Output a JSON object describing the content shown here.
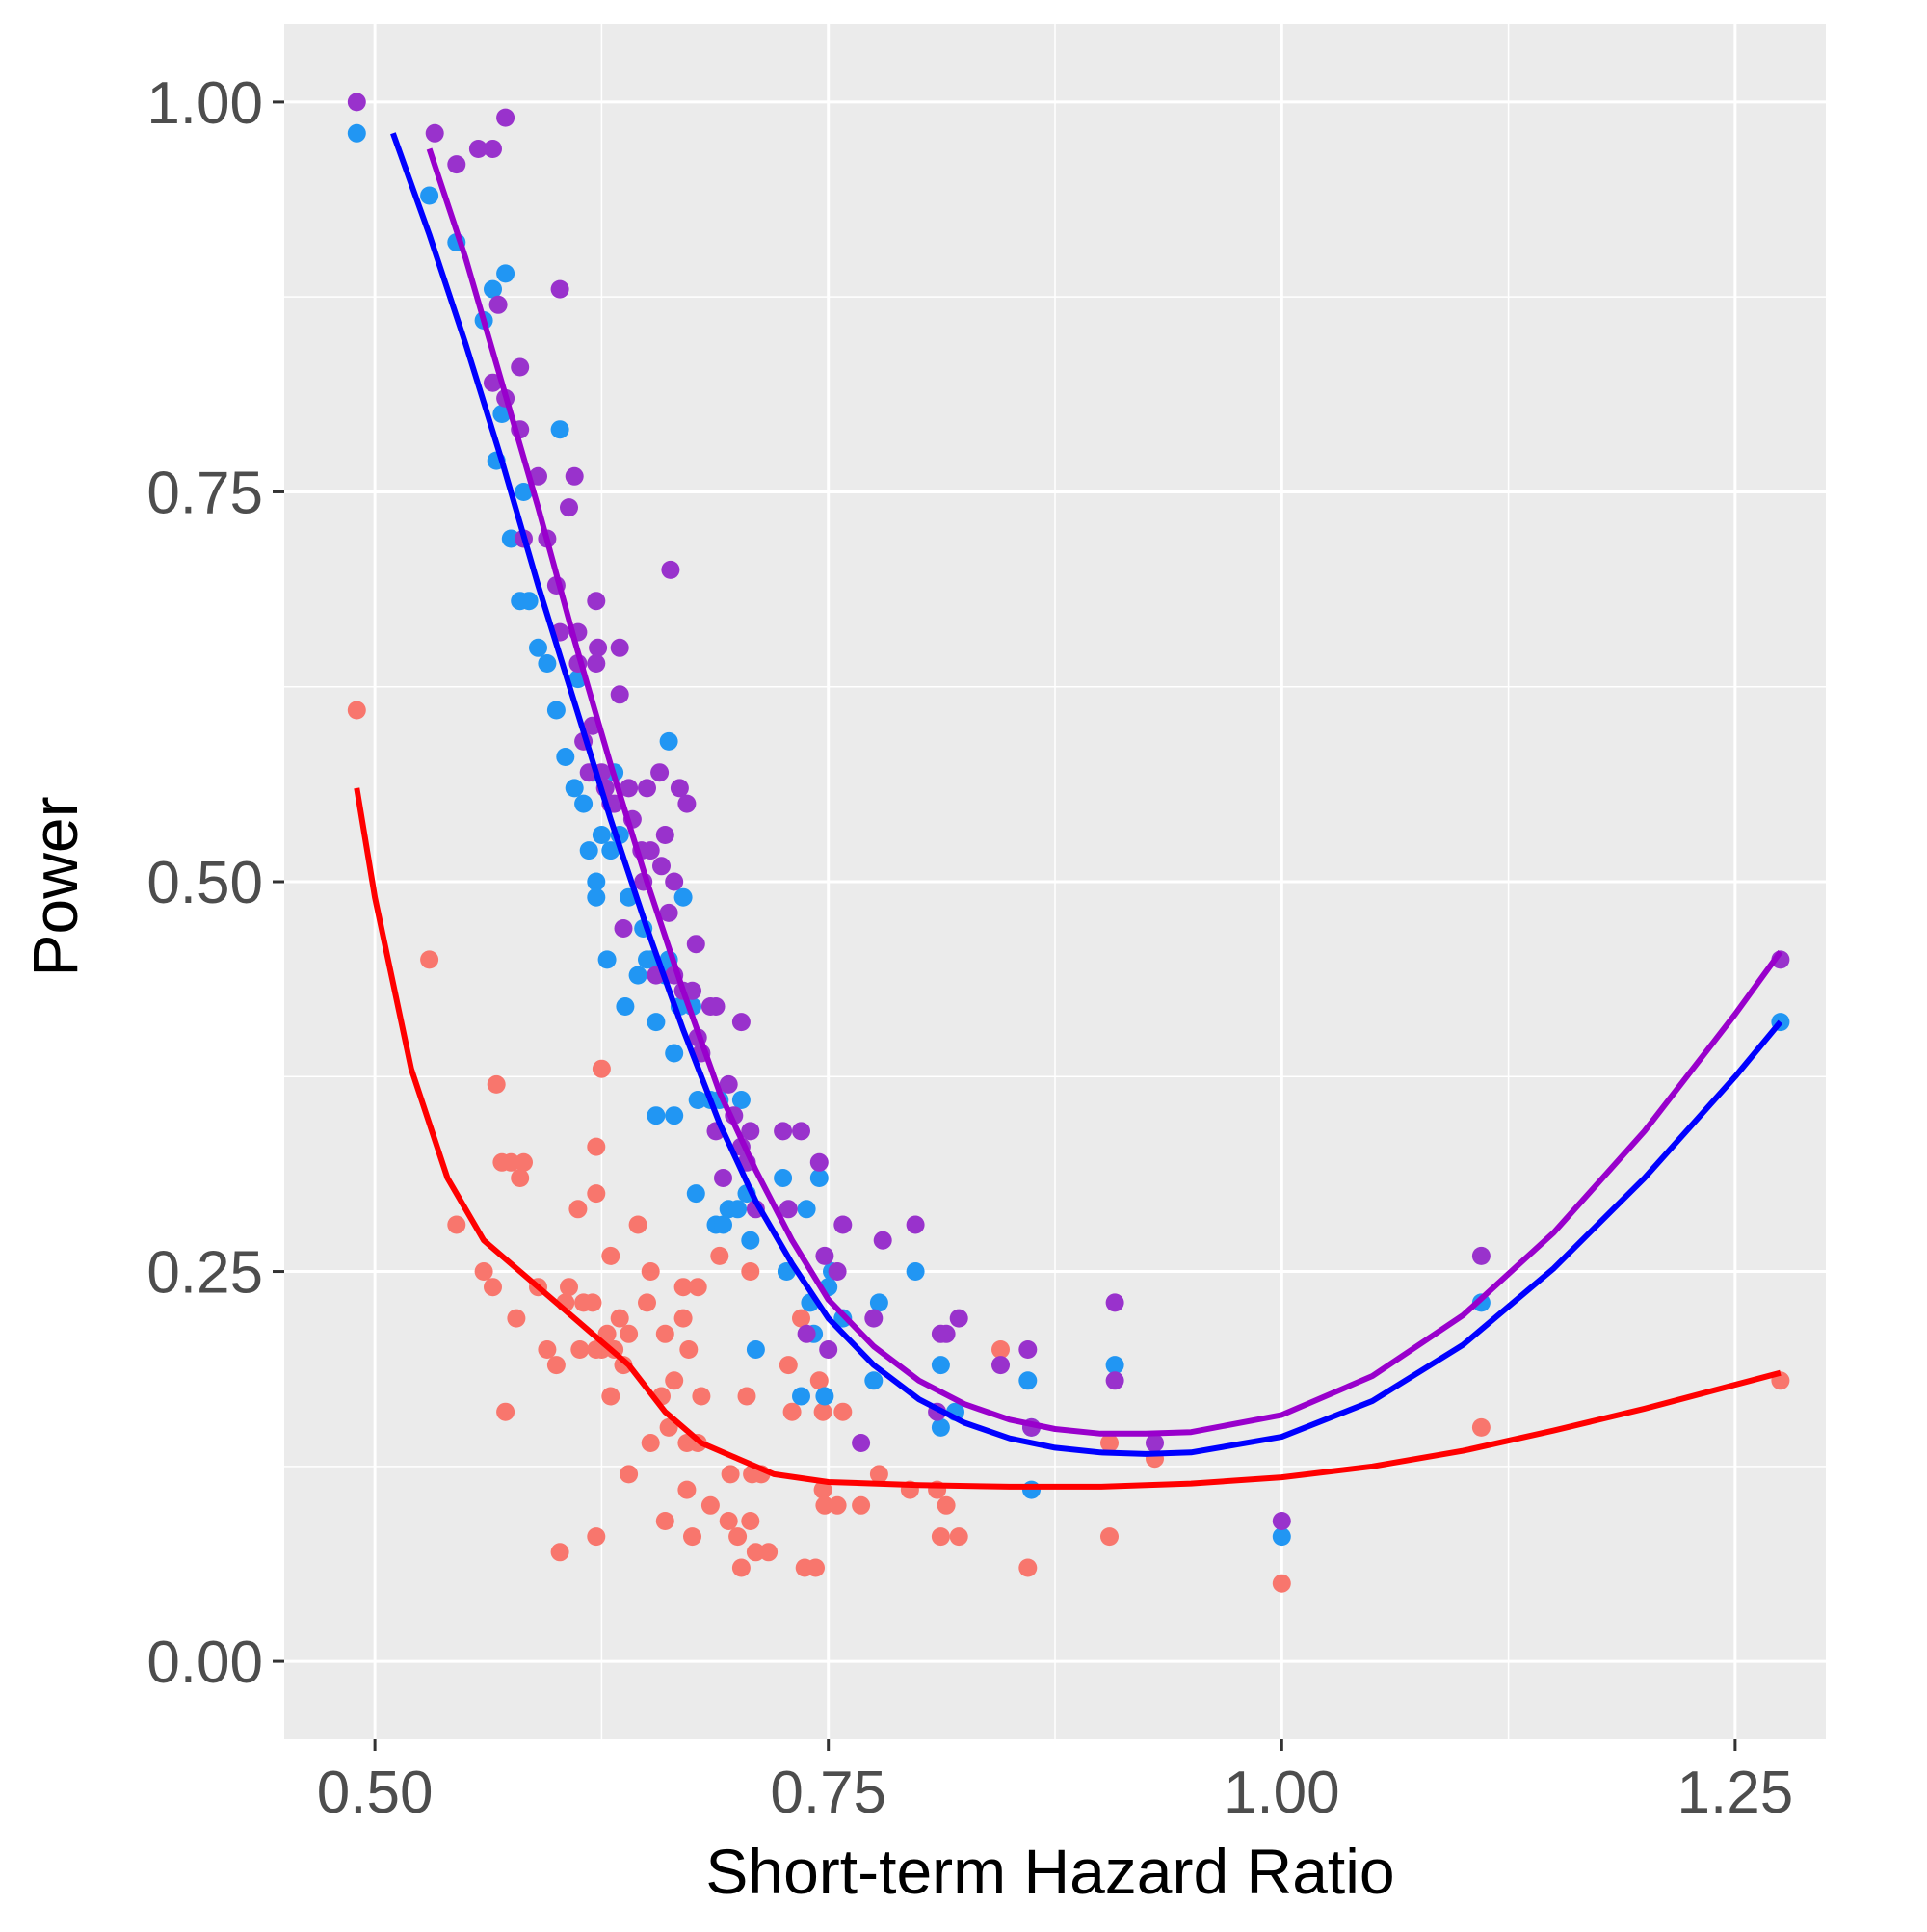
{
  "chart_data": {
    "type": "scatter",
    "title": "",
    "xlabel": "Short-term Hazard Ratio",
    "ylabel": "Power",
    "xlim": [
      0.45,
      1.3
    ],
    "ylim": [
      -0.05,
      1.05
    ],
    "x_ticks": [
      0.5,
      0.75,
      1.0,
      1.25
    ],
    "x_tick_labels": [
      "0.50",
      "0.75",
      "1.00",
      "1.25"
    ],
    "y_ticks": [
      0.0,
      0.25,
      0.5,
      0.75,
      1.0
    ],
    "y_tick_labels": [
      "0.00",
      "0.25",
      "0.50",
      "0.75",
      "1.00"
    ],
    "grid": true,
    "legend": "none",
    "background": "#ebebeb",
    "series": [
      {
        "color": "#f8766d",
        "points": [
          [
            0.49,
            0.61
          ],
          [
            0.53,
            0.45
          ],
          [
            0.545,
            0.28
          ],
          [
            0.56,
            0.25
          ],
          [
            0.565,
            0.24
          ],
          [
            0.567,
            0.37
          ],
          [
            0.57,
            0.32
          ],
          [
            0.572,
            0.16
          ],
          [
            0.575,
            0.32
          ],
          [
            0.578,
            0.22
          ],
          [
            0.58,
            0.31
          ],
          [
            0.582,
            0.32
          ],
          [
            0.59,
            0.24
          ],
          [
            0.595,
            0.2
          ],
          [
            0.6,
            0.19
          ],
          [
            0.602,
            0.07
          ],
          [
            0.605,
            0.23
          ],
          [
            0.607,
            0.24
          ],
          [
            0.612,
            0.29
          ],
          [
            0.613,
            0.2
          ],
          [
            0.615,
            0.23
          ],
          [
            0.62,
            0.23
          ],
          [
            0.622,
            0.08
          ],
          [
            0.622,
            0.2
          ],
          [
            0.622,
            0.3
          ],
          [
            0.622,
            0.33
          ],
          [
            0.625,
            0.2
          ],
          [
            0.625,
            0.38
          ],
          [
            0.628,
            0.21
          ],
          [
            0.63,
            0.26
          ],
          [
            0.63,
            0.17
          ],
          [
            0.632,
            0.2
          ],
          [
            0.635,
            0.22
          ],
          [
            0.637,
            0.19
          ],
          [
            0.64,
            0.12
          ],
          [
            0.64,
            0.21
          ],
          [
            0.645,
            0.28
          ],
          [
            0.65,
            0.23
          ],
          [
            0.652,
            0.14
          ],
          [
            0.652,
            0.25
          ],
          [
            0.658,
            0.17
          ],
          [
            0.66,
            0.09
          ],
          [
            0.66,
            0.21
          ],
          [
            0.662,
            0.15
          ],
          [
            0.665,
            0.18
          ],
          [
            0.67,
            0.24
          ],
          [
            0.67,
            0.22
          ],
          [
            0.672,
            0.11
          ],
          [
            0.672,
            0.14
          ],
          [
            0.673,
            0.2
          ],
          [
            0.675,
            0.08
          ],
          [
            0.678,
            0.24
          ],
          [
            0.678,
            0.14
          ],
          [
            0.68,
            0.17
          ],
          [
            0.685,
            0.1
          ],
          [
            0.69,
            0.26
          ],
          [
            0.695,
            0.09
          ],
          [
            0.696,
            0.12
          ],
          [
            0.7,
            0.08
          ],
          [
            0.702,
            0.06
          ],
          [
            0.705,
            0.17
          ],
          [
            0.707,
            0.09
          ],
          [
            0.707,
            0.25
          ],
          [
            0.708,
            0.12
          ],
          [
            0.71,
            0.07
          ],
          [
            0.713,
            0.12
          ],
          [
            0.717,
            0.07
          ],
          [
            0.728,
            0.19
          ],
          [
            0.73,
            0.16
          ],
          [
            0.735,
            0.22
          ],
          [
            0.737,
            0.06
          ],
          [
            0.743,
            0.06
          ],
          [
            0.745,
            0.18
          ],
          [
            0.747,
            0.11
          ],
          [
            0.747,
            0.16
          ],
          [
            0.748,
            0.1
          ],
          [
            0.755,
            0.1
          ],
          [
            0.758,
            0.16
          ],
          [
            0.768,
            0.1
          ],
          [
            0.778,
            0.12
          ],
          [
            0.795,
            0.11
          ],
          [
            0.81,
            0.11
          ],
          [
            0.812,
            0.08
          ],
          [
            0.815,
            0.1
          ],
          [
            0.822,
            0.08
          ],
          [
            0.845,
            0.2
          ],
          [
            0.86,
            0.06
          ],
          [
            0.905,
            0.14
          ],
          [
            0.905,
            0.08
          ],
          [
            0.93,
            0.13
          ],
          [
            1.0,
            0.05
          ],
          [
            1.11,
            0.15
          ],
          [
            1.275,
            0.18
          ]
        ]
      },
      {
        "color": "#2196f3",
        "points": [
          [
            0.49,
            0.98
          ],
          [
            0.53,
            0.94
          ],
          [
            0.545,
            0.91
          ],
          [
            0.56,
            0.86
          ],
          [
            0.565,
            0.88
          ],
          [
            0.567,
            0.77
          ],
          [
            0.57,
            0.8
          ],
          [
            0.572,
            0.89
          ],
          [
            0.575,
            0.72
          ],
          [
            0.58,
            0.68
          ],
          [
            0.582,
            0.75
          ],
          [
            0.585,
            0.68
          ],
          [
            0.59,
            0.65
          ],
          [
            0.595,
            0.64
          ],
          [
            0.6,
            0.61
          ],
          [
            0.602,
            0.79
          ],
          [
            0.605,
            0.58
          ],
          [
            0.61,
            0.56
          ],
          [
            0.612,
            0.63
          ],
          [
            0.615,
            0.55
          ],
          [
            0.618,
            0.52
          ],
          [
            0.62,
            0.57
          ],
          [
            0.622,
            0.5
          ],
          [
            0.622,
            0.49
          ],
          [
            0.625,
            0.53
          ],
          [
            0.628,
            0.45
          ],
          [
            0.63,
            0.52
          ],
          [
            0.632,
            0.57
          ],
          [
            0.635,
            0.53
          ],
          [
            0.638,
            0.42
          ],
          [
            0.64,
            0.49
          ],
          [
            0.645,
            0.44
          ],
          [
            0.648,
            0.47
          ],
          [
            0.65,
            0.45
          ],
          [
            0.652,
            0.45
          ],
          [
            0.655,
            0.41
          ],
          [
            0.655,
            0.35
          ],
          [
            0.66,
            0.44
          ],
          [
            0.662,
            0.59
          ],
          [
            0.662,
            0.45
          ],
          [
            0.665,
            0.35
          ],
          [
            0.665,
            0.39
          ],
          [
            0.668,
            0.42
          ],
          [
            0.67,
            0.49
          ],
          [
            0.675,
            0.42
          ],
          [
            0.677,
            0.3
          ],
          [
            0.678,
            0.36
          ],
          [
            0.685,
            0.36
          ],
          [
            0.688,
            0.28
          ],
          [
            0.69,
            0.36
          ],
          [
            0.692,
            0.28
          ],
          [
            0.695,
            0.29
          ],
          [
            0.7,
            0.29
          ],
          [
            0.702,
            0.36
          ],
          [
            0.705,
            0.3
          ],
          [
            0.707,
            0.27
          ],
          [
            0.71,
            0.2
          ],
          [
            0.725,
            0.31
          ],
          [
            0.727,
            0.25
          ],
          [
            0.735,
            0.17
          ],
          [
            0.738,
            0.29
          ],
          [
            0.74,
            0.23
          ],
          [
            0.742,
            0.21
          ],
          [
            0.745,
            0.31
          ],
          [
            0.748,
            0.17
          ],
          [
            0.75,
            0.24
          ],
          [
            0.752,
            0.25
          ],
          [
            0.758,
            0.22
          ],
          [
            0.775,
            0.18
          ],
          [
            0.778,
            0.23
          ],
          [
            0.798,
            0.25
          ],
          [
            0.812,
            0.19
          ],
          [
            0.812,
            0.15
          ],
          [
            0.82,
            0.16
          ],
          [
            0.86,
            0.18
          ],
          [
            0.862,
            0.15
          ],
          [
            0.862,
            0.11
          ],
          [
            0.908,
            0.19
          ],
          [
            1.0,
            0.08
          ],
          [
            1.11,
            0.23
          ],
          [
            1.275,
            0.41
          ]
        ]
      },
      {
        "color": "#9932cc",
        "points": [
          [
            0.49,
            1.0
          ],
          [
            0.533,
            0.98
          ],
          [
            0.545,
            0.96
          ],
          [
            0.557,
            0.97
          ],
          [
            0.565,
            0.97
          ],
          [
            0.565,
            0.82
          ],
          [
            0.568,
            0.87
          ],
          [
            0.572,
            0.99
          ],
          [
            0.572,
            0.81
          ],
          [
            0.58,
            0.83
          ],
          [
            0.58,
            0.79
          ],
          [
            0.582,
            0.72
          ],
          [
            0.59,
            0.76
          ],
          [
            0.595,
            0.72
          ],
          [
            0.6,
            0.69
          ],
          [
            0.602,
            0.88
          ],
          [
            0.602,
            0.66
          ],
          [
            0.607,
            0.74
          ],
          [
            0.61,
            0.76
          ],
          [
            0.612,
            0.66
          ],
          [
            0.612,
            0.64
          ],
          [
            0.615,
            0.59
          ],
          [
            0.618,
            0.57
          ],
          [
            0.62,
            0.6
          ],
          [
            0.622,
            0.68
          ],
          [
            0.622,
            0.64
          ],
          [
            0.623,
            0.65
          ],
          [
            0.625,
            0.57
          ],
          [
            0.627,
            0.56
          ],
          [
            0.63,
            0.55
          ],
          [
            0.632,
            0.55
          ],
          [
            0.635,
            0.65
          ],
          [
            0.635,
            0.62
          ],
          [
            0.637,
            0.47
          ],
          [
            0.64,
            0.56
          ],
          [
            0.642,
            0.54
          ],
          [
            0.647,
            0.52
          ],
          [
            0.648,
            0.5
          ],
          [
            0.65,
            0.56
          ],
          [
            0.652,
            0.52
          ],
          [
            0.655,
            0.44
          ],
          [
            0.657,
            0.57
          ],
          [
            0.658,
            0.51
          ],
          [
            0.66,
            0.53
          ],
          [
            0.662,
            0.48
          ],
          [
            0.663,
            0.7
          ],
          [
            0.665,
            0.5
          ],
          [
            0.665,
            0.44
          ],
          [
            0.668,
            0.56
          ],
          [
            0.67,
            0.43
          ],
          [
            0.672,
            0.55
          ],
          [
            0.675,
            0.43
          ],
          [
            0.677,
            0.46
          ],
          [
            0.678,
            0.4
          ],
          [
            0.68,
            0.39
          ],
          [
            0.685,
            0.42
          ],
          [
            0.688,
            0.42
          ],
          [
            0.688,
            0.34
          ],
          [
            0.692,
            0.31
          ],
          [
            0.695,
            0.37
          ],
          [
            0.698,
            0.35
          ],
          [
            0.702,
            0.41
          ],
          [
            0.702,
            0.33
          ],
          [
            0.705,
            0.32
          ],
          [
            0.707,
            0.34
          ],
          [
            0.71,
            0.29
          ],
          [
            0.725,
            0.34
          ],
          [
            0.728,
            0.29
          ],
          [
            0.735,
            0.34
          ],
          [
            0.738,
            0.21
          ],
          [
            0.745,
            0.32
          ],
          [
            0.748,
            0.26
          ],
          [
            0.75,
            0.2
          ],
          [
            0.755,
            0.25
          ],
          [
            0.758,
            0.28
          ],
          [
            0.768,
            0.14
          ],
          [
            0.775,
            0.22
          ],
          [
            0.78,
            0.27
          ],
          [
            0.798,
            0.28
          ],
          [
            0.81,
            0.16
          ],
          [
            0.812,
            0.21
          ],
          [
            0.815,
            0.21
          ],
          [
            0.822,
            0.22
          ],
          [
            0.845,
            0.19
          ],
          [
            0.86,
            0.2
          ],
          [
            0.862,
            0.15
          ],
          [
            0.908,
            0.23
          ],
          [
            0.908,
            0.18
          ],
          [
            0.93,
            0.14
          ],
          [
            1.0,
            0.09
          ],
          [
            1.11,
            0.26
          ],
          [
            1.275,
            0.45
          ]
        ]
      }
    ],
    "curves": [
      {
        "color": "#ff0000",
        "x": [
          0.49,
          0.5,
          0.52,
          0.54,
          0.56,
          0.58,
          0.6,
          0.62,
          0.64,
          0.66,
          0.68,
          0.7,
          0.72,
          0.75,
          0.8,
          0.85,
          0.9,
          0.95,
          1.0,
          1.05,
          1.1,
          1.15,
          1.2,
          1.275
        ],
        "y": [
          0.56,
          0.49,
          0.38,
          0.31,
          0.27,
          0.25,
          0.23,
          0.21,
          0.19,
          0.16,
          0.14,
          0.13,
          0.12,
          0.115,
          0.113,
          0.112,
          0.112,
          0.114,
          0.118,
          0.125,
          0.135,
          0.148,
          0.162,
          0.185
        ]
      },
      {
        "color": "#0000ff",
        "x": [
          0.51,
          0.53,
          0.55,
          0.57,
          0.59,
          0.61,
          0.63,
          0.65,
          0.67,
          0.69,
          0.71,
          0.73,
          0.75,
          0.775,
          0.8,
          0.825,
          0.85,
          0.875,
          0.9,
          0.925,
          0.95,
          1.0,
          1.05,
          1.1,
          1.15,
          1.2,
          1.25,
          1.275
        ],
        "y": [
          0.98,
          0.915,
          0.845,
          0.77,
          0.69,
          0.615,
          0.54,
          0.47,
          0.405,
          0.345,
          0.295,
          0.255,
          0.22,
          0.19,
          0.168,
          0.153,
          0.143,
          0.137,
          0.134,
          0.133,
          0.134,
          0.144,
          0.167,
          0.203,
          0.252,
          0.31,
          0.375,
          0.41
        ]
      },
      {
        "color": "#9900cc",
        "x": [
          0.53,
          0.55,
          0.57,
          0.59,
          0.61,
          0.63,
          0.65,
          0.67,
          0.69,
          0.71,
          0.73,
          0.75,
          0.775,
          0.8,
          0.825,
          0.85,
          0.875,
          0.9,
          0.925,
          0.95,
          1.0,
          1.05,
          1.1,
          1.15,
          1.2,
          1.25,
          1.275
        ],
        "y": [
          0.97,
          0.9,
          0.82,
          0.74,
          0.655,
          0.575,
          0.5,
          0.43,
          0.365,
          0.315,
          0.27,
          0.232,
          0.202,
          0.18,
          0.165,
          0.155,
          0.149,
          0.146,
          0.146,
          0.147,
          0.158,
          0.183,
          0.222,
          0.275,
          0.34,
          0.415,
          0.455
        ]
      }
    ]
  }
}
